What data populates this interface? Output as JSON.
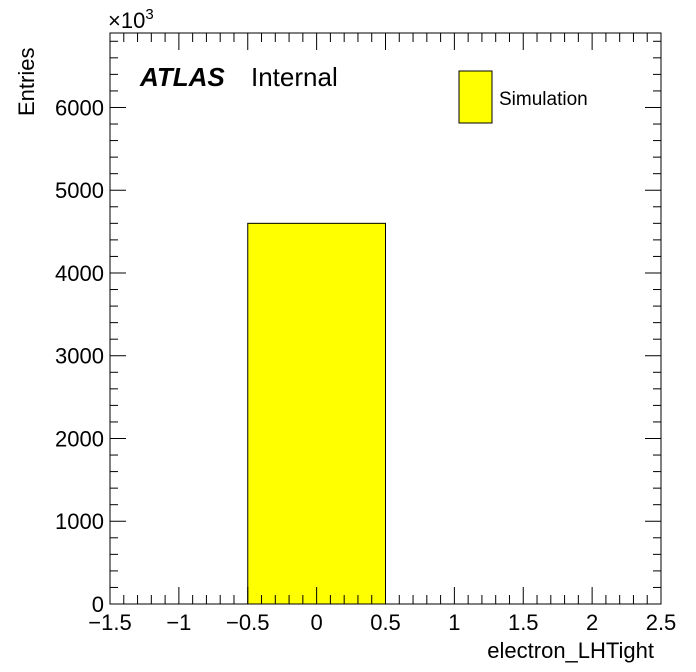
{
  "chart_data": {
    "type": "bar",
    "series": [
      {
        "name": "Simulation",
        "color": "#ffff00",
        "bins": [
          {
            "x_low": -0.5,
            "x_high": 0.5,
            "value": 4600
          }
        ]
      }
    ],
    "xlabel": "electron_LHTight",
    "ylabel": "Entries",
    "xlim": [
      -1.5,
      2.5
    ],
    "ylim": [
      0,
      6900
    ],
    "xticks": [
      -1.5,
      -1,
      -0.5,
      0,
      0.5,
      1,
      1.5,
      2,
      2.5
    ],
    "xtick_labels": [
      "−1.5",
      "−1",
      "−0.5",
      "0",
      "0.5",
      "1",
      "1.5",
      "2",
      "2.5"
    ],
    "yticks": [
      0,
      1000,
      2000,
      3000,
      4000,
      5000,
      6000
    ],
    "ytick_labels": [
      "0",
      "1000",
      "2000",
      "3000",
      "4000",
      "5000",
      "6000"
    ],
    "y_multiplier_base": "×10",
    "y_multiplier_exp": "3",
    "experiment_label": "ATLAS",
    "status_label": "Internal",
    "legend_placement": "top-right",
    "grid": false
  }
}
